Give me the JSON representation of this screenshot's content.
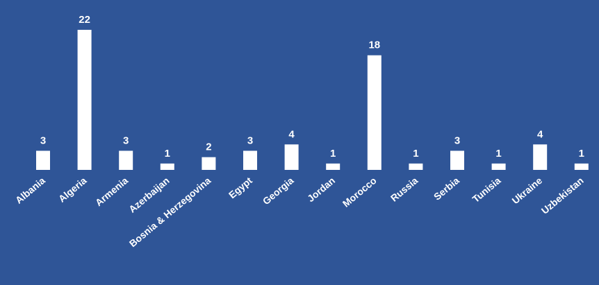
{
  "chart_data": {
    "type": "bar",
    "title": "",
    "xlabel": "",
    "ylabel": "",
    "categories": [
      "Albania",
      "Algeria",
      "Armenia",
      "Azerbaijan",
      "Bosnia & Herzegovina",
      "Egypt",
      "Georgia",
      "Jordan",
      "Morocco",
      "Russia",
      "Serbia",
      "Tunisia",
      "Ukraine",
      "Uzbekistan"
    ],
    "values": [
      3,
      22,
      3,
      1,
      2,
      3,
      4,
      1,
      18,
      1,
      3,
      1,
      4,
      1
    ],
    "ylim": [
      0,
      22
    ],
    "grid": false,
    "legend": "none",
    "data_labels": true,
    "colors": {
      "background": "#2f5597",
      "bar": "#ffffff",
      "text": "#ffffff"
    }
  }
}
